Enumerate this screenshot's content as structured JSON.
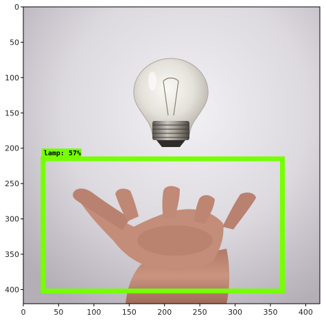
{
  "image": {
    "width_units": 420,
    "height_units": 420
  },
  "axes": {
    "x_ticks": [
      0,
      50,
      100,
      150,
      200,
      250,
      300,
      350,
      400
    ],
    "y_ticks": [
      0,
      50,
      100,
      150,
      200,
      250,
      300,
      350,
      400
    ]
  },
  "detections": [
    {
      "label_text": "lamp: 57%",
      "class": "lamp",
      "score": 57,
      "box": {
        "x_min": 28,
        "y_min": 215,
        "x_max": 367,
        "y_max": 402
      },
      "color": "#76ff03"
    }
  ],
  "colors": {
    "box": "#76ff03",
    "frame": "#000000",
    "sky_light": "#e9e7ec",
    "sky_dark": "#bdb8c0"
  }
}
